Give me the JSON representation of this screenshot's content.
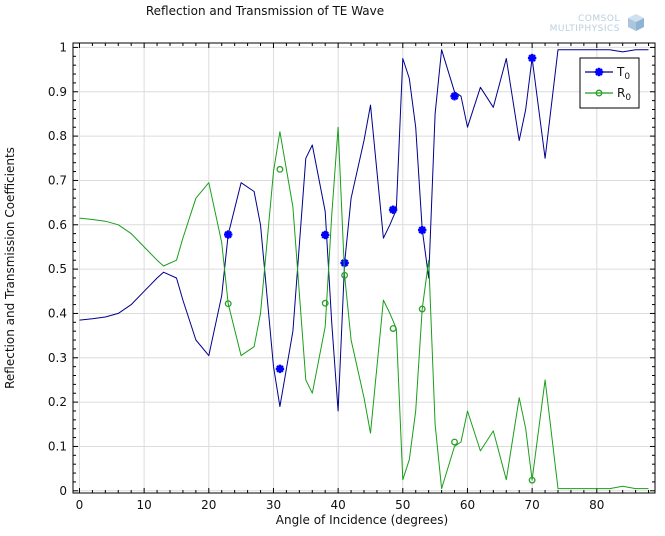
{
  "chart_data": {
    "type": "line",
    "title": "Reflection and Transmission of TE Wave",
    "xlabel": "Angle of Incidence (degrees)",
    "ylabel": "Reflection and Transmission Coefficients",
    "xlim": [
      -1,
      89
    ],
    "ylim": [
      -0.005,
      1.01
    ],
    "xticks": [
      0,
      10,
      20,
      30,
      40,
      50,
      60,
      70,
      80
    ],
    "yticks": [
      0,
      0.1,
      0.2,
      0.3,
      0.4,
      0.5,
      0.6,
      0.7,
      0.8,
      0.9,
      1
    ],
    "ytick_labels": [
      "0",
      "0.1",
      "0.2",
      "0.3",
      "0.4",
      "0.5",
      "0.6",
      "0.7",
      "0.8",
      "0.9",
      "1"
    ],
    "grid": true,
    "legend_position": "top-right",
    "watermark": [
      "COMSOL",
      "MULTIPHYSICS"
    ],
    "series": [
      {
        "name": "T0",
        "label_main": "T",
        "label_sub": "0",
        "color": "#00008b",
        "marker": "star",
        "marker_color": "#0000ff",
        "x": [
          0,
          2,
          4,
          6,
          8,
          10,
          12,
          13,
          15,
          16,
          18,
          20,
          22,
          23,
          25,
          27,
          28,
          30,
          31,
          33,
          35,
          36,
          38,
          39,
          40,
          41,
          42,
          44,
          45,
          47,
          48,
          49,
          50,
          51,
          52,
          53,
          54,
          55,
          56,
          58,
          59,
          60,
          62,
          64,
          66,
          68,
          69,
          70,
          72,
          74,
          76,
          78,
          80,
          82,
          84,
          86,
          88
        ],
        "y": [
          0.385,
          0.388,
          0.392,
          0.4,
          0.42,
          0.45,
          0.48,
          0.493,
          0.48,
          0.43,
          0.34,
          0.305,
          0.44,
          0.578,
          0.695,
          0.675,
          0.6,
          0.28,
          0.19,
          0.36,
          0.75,
          0.78,
          0.63,
          0.38,
          0.18,
          0.514,
          0.66,
          0.79,
          0.87,
          0.57,
          0.6,
          0.634,
          0.975,
          0.93,
          0.82,
          0.59,
          0.48,
          0.85,
          0.995,
          0.9,
          0.89,
          0.82,
          0.91,
          0.865,
          0.975,
          0.79,
          0.86,
          0.976,
          0.75,
          0.995,
          0.995,
          0.995,
          0.995,
          0.995,
          0.99,
          0.995,
          0.995
        ],
        "markers_x": [
          23,
          31,
          38,
          41,
          48.5,
          53,
          58,
          70
        ],
        "markers_y": [
          0.578,
          0.275,
          0.577,
          0.514,
          0.634,
          0.588,
          0.89,
          0.976
        ]
      },
      {
        "name": "R0",
        "label_main": "R",
        "label_sub": "0",
        "color": "#1a9e1a",
        "marker": "circle",
        "marker_color": "#2aa02a",
        "x": [
          0,
          2,
          4,
          6,
          8,
          10,
          12,
          13,
          15,
          16,
          18,
          20,
          22,
          23,
          25,
          27,
          28,
          30,
          31,
          33,
          35,
          36,
          38,
          39,
          40,
          41,
          42,
          44,
          45,
          47,
          48,
          49,
          50,
          51,
          52,
          53,
          54,
          55,
          56,
          58,
          59,
          60,
          62,
          64,
          66,
          68,
          69,
          70,
          72,
          74,
          76,
          78,
          80,
          82,
          84,
          86,
          88
        ],
        "y": [
          0.615,
          0.612,
          0.608,
          0.6,
          0.58,
          0.55,
          0.52,
          0.507,
          0.52,
          0.57,
          0.66,
          0.695,
          0.56,
          0.422,
          0.305,
          0.325,
          0.4,
          0.72,
          0.81,
          0.64,
          0.25,
          0.22,
          0.37,
          0.62,
          0.82,
          0.486,
          0.34,
          0.21,
          0.13,
          0.43,
          0.4,
          0.366,
          0.025,
          0.07,
          0.18,
          0.41,
          0.52,
          0.15,
          0.005,
          0.1,
          0.11,
          0.18,
          0.09,
          0.135,
          0.025,
          0.21,
          0.14,
          0.024,
          0.25,
          0.005,
          0.005,
          0.005,
          0.005,
          0.005,
          0.01,
          0.005,
          0.005
        ],
        "markers_x": [
          23,
          31,
          38,
          41,
          48.5,
          53,
          58,
          70
        ],
        "markers_y": [
          0.422,
          0.725,
          0.423,
          0.486,
          0.366,
          0.41,
          0.11,
          0.024
        ]
      }
    ]
  }
}
